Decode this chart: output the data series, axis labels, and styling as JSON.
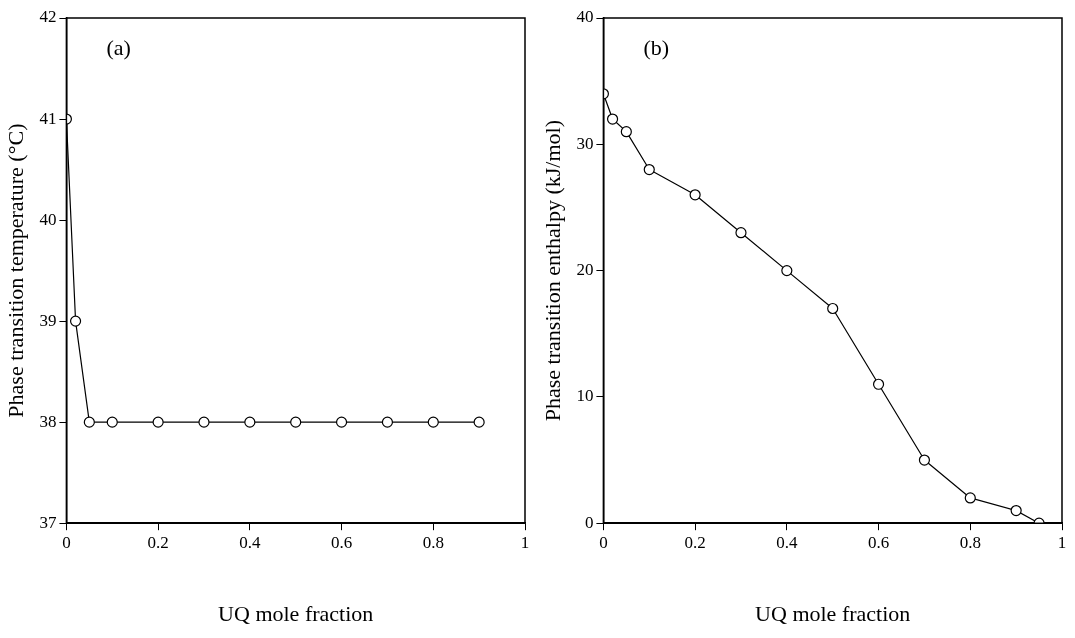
{
  "chart_data": [
    {
      "type": "line",
      "xlabel": "UQ mole fraction",
      "ylabel": "Phase transition temperature (°C)",
      "annotations": [
        "(a)"
      ],
      "x": [
        0,
        0.02,
        0.05,
        0.1,
        0.2,
        0.3,
        0.4,
        0.5,
        0.6,
        0.7,
        0.8,
        0.9
      ],
      "series": [
        {
          "color": "#000000",
          "values": [
            41,
            39,
            38,
            38,
            38,
            38,
            38,
            38,
            38,
            38,
            38,
            38
          ]
        }
      ],
      "xlim": [
        0,
        1
      ],
      "xticks": [
        0,
        0.2,
        0.4,
        0.6,
        0.8,
        1
      ],
      "ylim": [
        37,
        42
      ],
      "yticks": [
        37,
        38,
        39,
        40,
        41,
        42
      ],
      "grid": false,
      "legend": false,
      "marker": "circle",
      "line_style": "solid"
    },
    {
      "type": "line",
      "xlabel": "UQ mole fraction",
      "ylabel": "Phase transition enthalpy (kJ/mol)",
      "annotations": [
        "(b)"
      ],
      "x": [
        0,
        0.02,
        0.05,
        0.1,
        0.2,
        0.3,
        0.4,
        0.5,
        0.6,
        0.7,
        0.8,
        0.9,
        0.95
      ],
      "series": [
        {
          "color": "#000000",
          "values": [
            34,
            32,
            31,
            28,
            26,
            23,
            20,
            17,
            11,
            5,
            2,
            1,
            0
          ]
        }
      ],
      "xlim": [
        0,
        1
      ],
      "xticks": [
        0,
        0.2,
        0.4,
        0.6,
        0.8,
        1
      ],
      "ylim": [
        0,
        40
      ],
      "yticks": [
        0,
        10,
        20,
        30,
        40
      ],
      "grid": false,
      "legend": false,
      "marker": "circle",
      "line_style": "solid"
    }
  ]
}
